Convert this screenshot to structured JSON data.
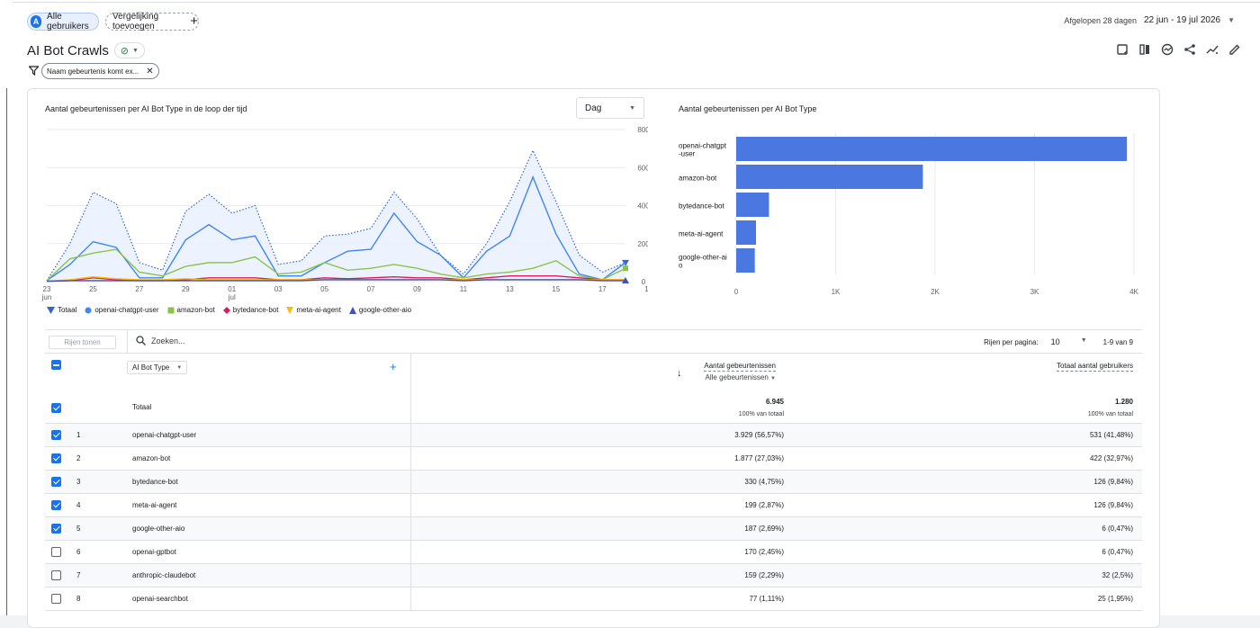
{
  "header": {
    "users_chip": {
      "avatar": "A",
      "label": "Alle gebruikers"
    },
    "compare_chip": {
      "label": "Vergelijking toevoegen"
    },
    "date_prefix": "Afgelopen 28 dagen",
    "date_range": "22 jun - 19 jul 2026",
    "title": "AI Bot Crawls",
    "filter": "Naam gebeurtenis komt ex..."
  },
  "toolbar_icons": [
    "edit-note-icon",
    "compare-columns-icon",
    "insights-icon",
    "share-icon",
    "trend-icon",
    "pencil-icon"
  ],
  "line_chart_title": "Aantal gebeurtenissen per AI Bot Type in de loop der tijd",
  "bar_chart_title": "Aantal gebeurtenissen per AI Bot Type",
  "granularity": "Dag",
  "legend": [
    "Totaal",
    "openai-chatgpt-user",
    "amazon-bot",
    "bytedance-bot",
    "meta-ai-agent",
    "google-other-aio"
  ],
  "chart_data": [
    {
      "type": "line",
      "x_tick_labels": [
        [
          "23",
          "jun"
        ],
        [
          "25",
          ""
        ],
        [
          "27",
          ""
        ],
        [
          "29",
          ""
        ],
        [
          "01",
          "jul"
        ],
        [
          "03",
          ""
        ],
        [
          "05",
          ""
        ],
        [
          "07",
          ""
        ],
        [
          "09",
          ""
        ],
        [
          "11",
          ""
        ],
        [
          "13",
          ""
        ],
        [
          "15",
          ""
        ],
        [
          "17",
          ""
        ],
        [
          "19",
          ""
        ]
      ],
      "ylim": [
        0,
        800
      ],
      "y_ticks": [
        0,
        200,
        400,
        600,
        800
      ],
      "series": [
        {
          "name": "Totaal",
          "color": "#3366cc",
          "values": [
            5,
            200,
            470,
            410,
            100,
            60,
            370,
            460,
            360,
            400,
            90,
            110,
            240,
            250,
            280,
            470,
            330,
            140,
            40,
            200,
            420,
            690,
            420,
            140,
            50,
            100
          ]
        },
        {
          "name": "openai-chatgpt-user",
          "color": "#4285f4",
          "values": [
            5,
            90,
            210,
            180,
            20,
            20,
            220,
            300,
            220,
            240,
            30,
            30,
            100,
            160,
            170,
            360,
            210,
            140,
            20,
            160,
            240,
            550,
            250,
            40,
            10,
            100
          ]
        },
        {
          "name": "amazon-bot",
          "color": "#8bc34a",
          "values": [
            5,
            120,
            150,
            170,
            50,
            30,
            80,
            100,
            100,
            130,
            40,
            50,
            100,
            60,
            70,
            90,
            70,
            40,
            20,
            40,
            50,
            70,
            110,
            30,
            10,
            70
          ]
        },
        {
          "name": "bytedance-bot",
          "color": "#d81b60",
          "values": [
            2,
            5,
            20,
            10,
            5,
            5,
            10,
            20,
            20,
            20,
            10,
            10,
            20,
            15,
            20,
            25,
            20,
            20,
            10,
            20,
            30,
            30,
            30,
            20,
            10,
            10
          ]
        },
        {
          "name": "meta-ai-agent",
          "color": "#fbbc04",
          "values": [
            2,
            10,
            25,
            15,
            10,
            10,
            15,
            10,
            10,
            10,
            10,
            10,
            10,
            10,
            10,
            10,
            10,
            10,
            10,
            10,
            10,
            10,
            10,
            10,
            10,
            10
          ]
        },
        {
          "name": "google-other-aio",
          "color": "#3f51b5",
          "values": [
            2,
            5,
            5,
            5,
            5,
            5,
            5,
            5,
            5,
            5,
            5,
            5,
            10,
            10,
            10,
            10,
            10,
            10,
            5,
            10,
            10,
            10,
            10,
            10,
            5,
            5
          ]
        }
      ]
    },
    {
      "type": "bar",
      "orientation": "horizontal",
      "categories": [
        "openai-chatgpt-user",
        "amazon-bot",
        "bytedance-bot",
        "meta-ai-agent",
        "google-other-aio"
      ],
      "category_labels": [
        [
          "openai-chatgpt",
          "-user"
        ],
        [
          "amazon-bot"
        ],
        [
          "bytedance-bot"
        ],
        [
          "meta-ai-agent"
        ],
        [
          "google-other-ai",
          "o"
        ]
      ],
      "values": [
        3929,
        1877,
        330,
        199,
        187
      ],
      "xlim": [
        0,
        4000
      ],
      "x_ticks": [
        "0",
        "1K",
        "2K",
        "3K",
        "4K"
      ],
      "color": "#4a77e0"
    }
  ],
  "table": {
    "rows_button": "Rijen tonen",
    "search_placeholder": "Zoeken...",
    "rows_per_page_label": "Rijen per pagina:",
    "rows_per_page": "10",
    "range": "1-9 van 9",
    "dimension": "AI Bot Type",
    "metric1_header": "Aantal gebeurtenissen",
    "metric1_sub": "Alle gebeurtenissen",
    "metric2_header": "Totaal aantal gebruikers",
    "total_label": "Totaal",
    "total_m1": "6.945",
    "total_m1_sub": "100% van totaal",
    "total_m2": "1.280",
    "total_m2_sub": "100% van totaal",
    "rows": [
      {
        "idx": "1",
        "name": "openai-chatgpt-user",
        "m1": "3.929 (56,57%)",
        "m2": "531 (41,48%)",
        "checked": true
      },
      {
        "idx": "2",
        "name": "amazon-bot",
        "m1": "1.877 (27,03%)",
        "m2": "422 (32,97%)",
        "checked": true
      },
      {
        "idx": "3",
        "name": "bytedance-bot",
        "m1": "330 (4,75%)",
        "m2": "126 (9,84%)",
        "checked": true
      },
      {
        "idx": "4",
        "name": "meta-ai-agent",
        "m1": "199 (2,87%)",
        "m2": "126 (9,84%)",
        "checked": true
      },
      {
        "idx": "5",
        "name": "google-other-aio",
        "m1": "187 (2,69%)",
        "m2": "6 (0,47%)",
        "checked": true
      },
      {
        "idx": "6",
        "name": "openai-gptbot",
        "m1": "170 (2,45%)",
        "m2": "6 (0,47%)",
        "checked": false
      },
      {
        "idx": "7",
        "name": "anthropic-claudebot",
        "m1": "159 (2,29%)",
        "m2": "32 (2,5%)",
        "checked": false
      },
      {
        "idx": "8",
        "name": "openai-searchbot",
        "m1": "77 (1,11%)",
        "m2": "25 (1,95%)",
        "checked": false
      }
    ]
  }
}
